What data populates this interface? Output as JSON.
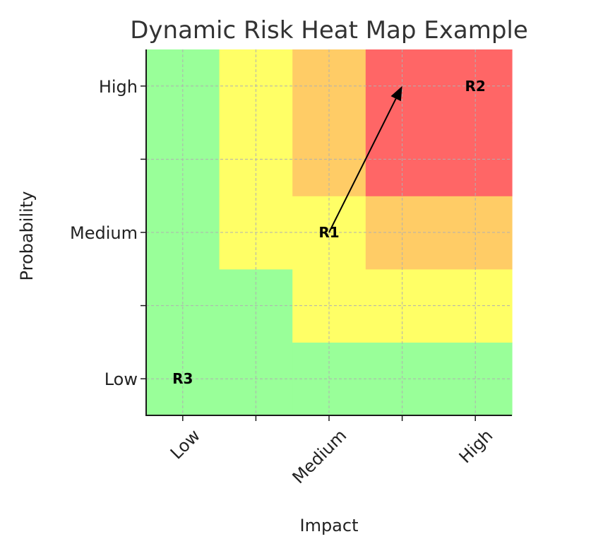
{
  "chart_data": {
    "type": "heatmap",
    "title": "Dynamic Risk Heat Map Example",
    "xlabel": "Impact",
    "ylabel": "Probability",
    "xlim": [
      0,
      5
    ],
    "ylim": [
      0,
      5
    ],
    "x_ticks": [
      {
        "value": 0.5,
        "label": "Low"
      },
      {
        "value": 1.5,
        "label": ""
      },
      {
        "value": 2.5,
        "label": "Medium"
      },
      {
        "value": 3.5,
        "label": ""
      },
      {
        "value": 4.5,
        "label": "High"
      }
    ],
    "y_ticks": [
      {
        "value": 0.5,
        "label": "Low"
      },
      {
        "value": 1.5,
        "label": ""
      },
      {
        "value": 2.5,
        "label": "Medium"
      },
      {
        "value": 3.5,
        "label": ""
      },
      {
        "value": 4.5,
        "label": "High"
      }
    ],
    "grid": true,
    "levels": [
      "green",
      "yellow",
      "orange",
      "red"
    ],
    "colors": {
      "green": "#99ff99",
      "yellow": "#ffff66",
      "orange": "#ffcc66",
      "red": "#ff6666"
    },
    "matrix_bottom_to_top": [
      [
        "green",
        "green",
        "green",
        "green",
        "green"
      ],
      [
        "green",
        "green",
        "yellow",
        "yellow",
        "yellow"
      ],
      [
        "green",
        "yellow",
        "yellow",
        "orange",
        "orange"
      ],
      [
        "green",
        "yellow",
        "orange",
        "red",
        "red"
      ],
      [
        "green",
        "yellow",
        "orange",
        "red",
        "red"
      ]
    ],
    "risks": [
      {
        "label": "R1",
        "x": 2.5,
        "y": 2.5
      },
      {
        "label": "R2",
        "x": 4.5,
        "y": 4.5
      },
      {
        "label": "R3",
        "x": 0.5,
        "y": 0.5
      }
    ],
    "arrows": [
      {
        "from": [
          2.5,
          2.5
        ],
        "to": [
          3.5,
          4.5
        ]
      }
    ]
  }
}
